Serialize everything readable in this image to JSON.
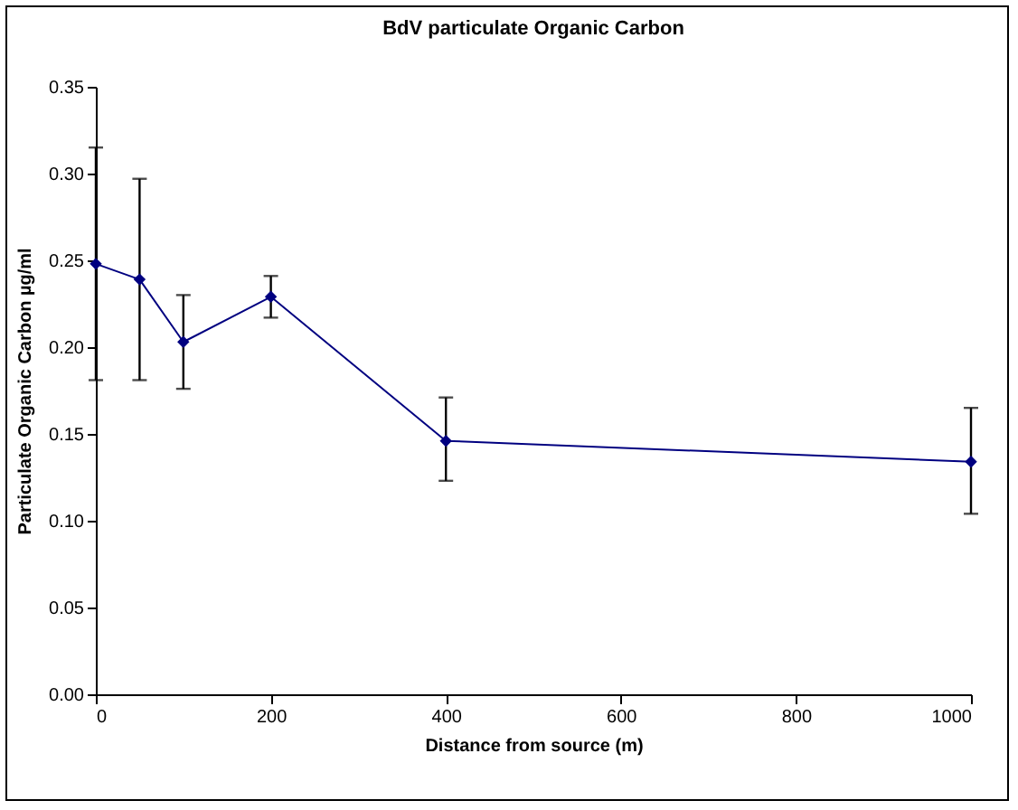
{
  "chart_data": {
    "type": "line",
    "title": "BdV particulate Organic Carbon",
    "xlabel": "Distance from source (m)",
    "ylabel": "Particulate Organic Carbon µg/ml",
    "x": [
      0,
      50,
      100,
      200,
      400,
      1000
    ],
    "series": [
      {
        "color": "#000080",
        "values": [
          0.248,
          0.239,
          0.203,
          0.229,
          0.146,
          0.134
        ],
        "errors": [
          [
            0.181,
            0.315
          ],
          [
            0.181,
            0.297
          ],
          [
            0.176,
            0.23
          ],
          [
            0.217,
            0.241
          ],
          [
            0.123,
            0.171
          ],
          [
            0.104,
            0.165
          ]
        ]
      }
    ],
    "xlim": [
      0,
      1000
    ],
    "xticks": [
      0,
      200,
      400,
      600,
      800,
      1000
    ],
    "ylim": [
      0,
      0.35
    ],
    "yticks": [
      {
        "value": 0,
        "label": "0.00"
      },
      {
        "value": 0.05,
        "label": "0.05"
      },
      {
        "value": 0.1,
        "label": "0.10"
      },
      {
        "value": 0.15,
        "label": "0.15"
      },
      {
        "value": 0.2,
        "label": "0.20"
      },
      {
        "value": 0.25,
        "label": "0.25"
      },
      {
        "value": 0.3,
        "label": "0.30"
      },
      {
        "value": 0.35,
        "label": "0.35"
      }
    ],
    "grid": false,
    "marker": "diamond",
    "line_style": "solid"
  }
}
